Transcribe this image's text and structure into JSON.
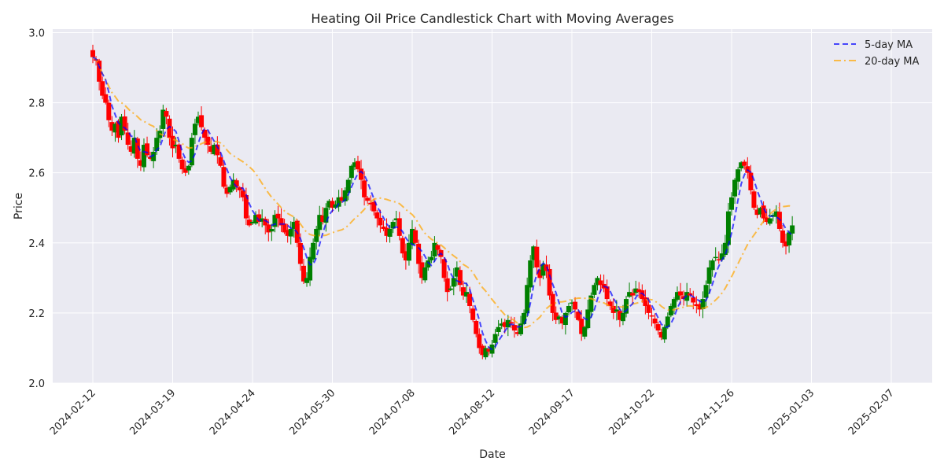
{
  "chart_data": {
    "type": "candlestick",
    "title": "Heating Oil Price Candlestick Chart with Moving Averages",
    "xlabel": "Date",
    "ylabel": "Price",
    "ylim": [
      2.0,
      3.01
    ],
    "yticks": [
      "2.0",
      "2.2",
      "2.4",
      "2.6",
      "2.8",
      "3.0"
    ],
    "ytick_values": [
      2.0,
      2.2,
      2.4,
      2.6,
      2.8,
      3.0
    ],
    "xticks": [
      "2024-02-12",
      "2024-03-19",
      "2024-04-24",
      "2024-05-30",
      "2024-07-08",
      "2024-08-12",
      "2024-09-17",
      "2024-10-22",
      "2024-11-26",
      "2025-01-03",
      "2025-02-07"
    ],
    "xtick_interval_candles": 25,
    "grid": true,
    "legend_position": "top-right",
    "up_color": "#008000",
    "down_color": "#ff0000",
    "series": [
      {
        "name": "5-day MA",
        "color": "#0000ff",
        "style": "dashed",
        "window": 5
      },
      {
        "name": "20-day MA",
        "color": "#ffa500",
        "style": "dashdot",
        "window": 20
      }
    ],
    "close_anchors": [
      2.93,
      2.92,
      2.86,
      2.82,
      2.8,
      2.75,
      2.72,
      2.74,
      2.7,
      2.76,
      2.72,
      2.68,
      2.66,
      2.7,
      2.64,
      2.62,
      2.68,
      2.65,
      2.64,
      2.66,
      2.7,
      2.72,
      2.78,
      2.76,
      2.7,
      2.67,
      2.68,
      2.64,
      2.61,
      2.6,
      2.62,
      2.7,
      2.74,
      2.76,
      2.73,
      2.7,
      2.68,
      2.66,
      2.68,
      2.65,
      2.62,
      2.56,
      2.54,
      2.56,
      2.58,
      2.56,
      2.55,
      2.53,
      2.47,
      2.45,
      2.46,
      2.48,
      2.46,
      2.47,
      2.45,
      2.43,
      2.44,
      2.48,
      2.47,
      2.45,
      2.43,
      2.42,
      2.44,
      2.46,
      2.4,
      2.34,
      2.29,
      2.3,
      2.36,
      2.4,
      2.44,
      2.48,
      2.46,
      2.5,
      2.52,
      2.5,
      2.51,
      2.53,
      2.52,
      2.55,
      2.58,
      2.62,
      2.63,
      2.61,
      2.58,
      2.53,
      2.52,
      2.51,
      2.49,
      2.47,
      2.45,
      2.44,
      2.42,
      2.44,
      2.46,
      2.47,
      2.42,
      2.37,
      2.35,
      2.4,
      2.44,
      2.4,
      2.34,
      2.3,
      2.33,
      2.35,
      2.36,
      2.4,
      2.38,
      2.36,
      2.3,
      2.26,
      2.27,
      2.3,
      2.33,
      2.28,
      2.25,
      2.26,
      2.22,
      2.18,
      2.14,
      2.1,
      2.08,
      2.1,
      2.09,
      2.11,
      2.14,
      2.16,
      2.17,
      2.16,
      2.18,
      2.17,
      2.15,
      2.14,
      2.17,
      2.2,
      2.28,
      2.35,
      2.39,
      2.33,
      2.3,
      2.34,
      2.32,
      2.25,
      2.2,
      2.18,
      2.19,
      2.17,
      2.2,
      2.22,
      2.23,
      2.21,
      2.18,
      2.14,
      2.16,
      2.21,
      2.25,
      2.28,
      2.3,
      2.28,
      2.27,
      2.24,
      2.22,
      2.2,
      2.21,
      2.18,
      2.2,
      2.24,
      2.26,
      2.25,
      2.27,
      2.26,
      2.24,
      2.22,
      2.2,
      2.19,
      2.17,
      2.15,
      2.13,
      2.16,
      2.19,
      2.22,
      2.24,
      2.26,
      2.25,
      2.24,
      2.26,
      2.25,
      2.23,
      2.22,
      2.21,
      2.24,
      2.28,
      2.33,
      2.35,
      2.36,
      2.35,
      2.37,
      2.4,
      2.49,
      2.53,
      2.58,
      2.61,
      2.63,
      2.62,
      2.6,
      2.55,
      2.5,
      2.48,
      2.5,
      2.47,
      2.46,
      2.47,
      2.48,
      2.49,
      2.44,
      2.4,
      2.39,
      2.43,
      2.45
    ]
  },
  "legend": {
    "ma5_label": "5-day MA",
    "ma20_label": "20-day MA"
  }
}
